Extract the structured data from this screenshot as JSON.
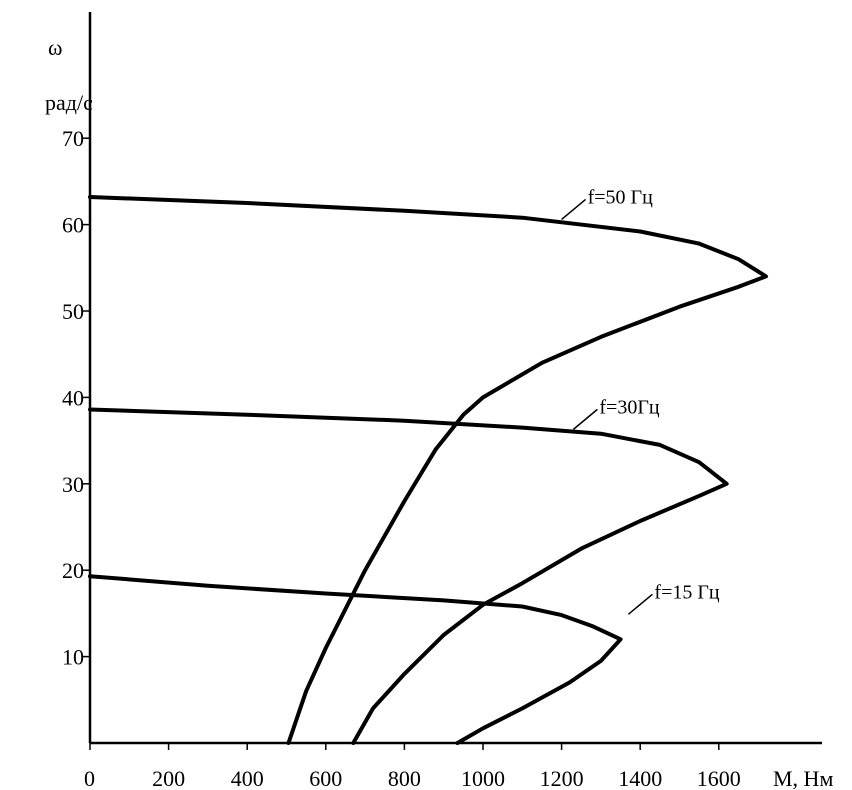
{
  "chart_data": {
    "type": "line",
    "title": "",
    "xlabel": "М, Нм",
    "ylabel_symbol": "ω",
    "ylabel_unit": "рад/с",
    "xlim": [
      0,
      1800
    ],
    "ylim": [
      0,
      80
    ],
    "xticks": [
      0,
      200,
      400,
      600,
      800,
      1000,
      1200,
      1400,
      1600
    ],
    "yticks": [
      10,
      20,
      30,
      40,
      50,
      60,
      70
    ],
    "grid": false,
    "series": [
      {
        "name": "f=50 Гц",
        "points": [
          [
            0,
            63.2
          ],
          [
            400,
            62.5
          ],
          [
            800,
            61.6
          ],
          [
            1100,
            60.8
          ],
          [
            1400,
            59.2
          ],
          [
            1550,
            57.8
          ],
          [
            1650,
            56.0
          ],
          [
            1720,
            54.0
          ],
          [
            1650,
            52.8
          ],
          [
            1500,
            50.5
          ],
          [
            1300,
            47.0
          ],
          [
            1150,
            44.0
          ],
          [
            1000,
            40.0
          ],
          [
            950,
            38.0
          ],
          [
            880,
            34.0
          ],
          [
            800,
            28.0
          ],
          [
            700,
            20.0
          ],
          [
            600,
            11.0
          ],
          [
            550,
            6.0
          ],
          [
            505,
            0
          ]
        ]
      },
      {
        "name": "f=30Гц",
        "points": [
          [
            0,
            38.6
          ],
          [
            400,
            38.0
          ],
          [
            800,
            37.3
          ],
          [
            1100,
            36.5
          ],
          [
            1300,
            35.8
          ],
          [
            1450,
            34.5
          ],
          [
            1550,
            32.5
          ],
          [
            1620,
            30.0
          ],
          [
            1550,
            28.6
          ],
          [
            1400,
            25.7
          ],
          [
            1250,
            22.5
          ],
          [
            1100,
            18.5
          ],
          [
            1000,
            16.0
          ],
          [
            900,
            12.5
          ],
          [
            800,
            8.0
          ],
          [
            720,
            4.0
          ],
          [
            670,
            0
          ]
        ]
      },
      {
        "name": "f=15 Гц",
        "points": [
          [
            0,
            19.3
          ],
          [
            300,
            18.2
          ],
          [
            600,
            17.3
          ],
          [
            900,
            16.5
          ],
          [
            1100,
            15.8
          ],
          [
            1200,
            14.8
          ],
          [
            1280,
            13.5
          ],
          [
            1350,
            12.0
          ],
          [
            1300,
            9.5
          ],
          [
            1220,
            7.0
          ],
          [
            1100,
            4.0
          ],
          [
            1000,
            1.7
          ],
          [
            935,
            0
          ]
        ]
      }
    ],
    "annotations": [
      {
        "text": "f=50 Гц",
        "series": 0,
        "at": [
          1200,
          60.6
        ]
      },
      {
        "text": "f=30Гц",
        "series": 1,
        "at": [
          1230,
          36.3
        ]
      },
      {
        "text": "f=15 Гц",
        "series": 2,
        "at": [
          1370,
          14.9
        ]
      }
    ]
  }
}
